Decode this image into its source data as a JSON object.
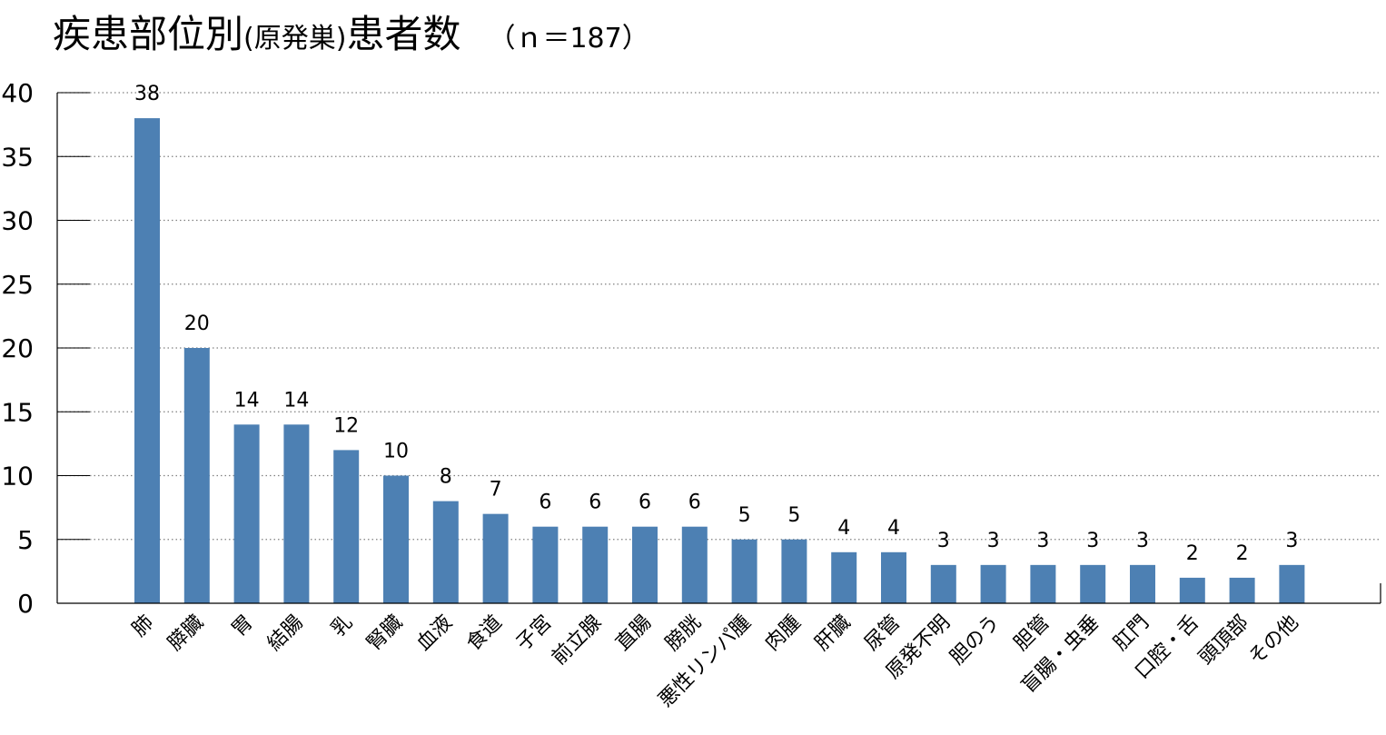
{
  "title": {
    "main": "疾患部位別",
    "paren": "(原発巣)",
    "main2": "患者数",
    "count": "（ｎ＝187）"
  },
  "colors": {
    "bar": "#4d80b3",
    "grid": "#808080",
    "axis": "#000000"
  },
  "chart_data": {
    "type": "bar",
    "title": "疾患部位別 (原発巣) 患者数 （ｎ＝187）",
    "categories": [
      "肺",
      "膵臓",
      "胃",
      "結腸",
      "乳",
      "腎臓",
      "血液",
      "食道",
      "子宮",
      "前立腺",
      "直腸",
      "膀胱",
      "悪性リンパ腫",
      "肉腫",
      "肝臓",
      "尿管",
      "原発不明",
      "胆のう",
      "胆管",
      "盲腸・虫垂",
      "肛門",
      "口腔・舌",
      "頭頂部",
      "その他"
    ],
    "values": [
      38,
      20,
      14,
      14,
      12,
      10,
      8,
      7,
      6,
      6,
      6,
      6,
      5,
      5,
      4,
      4,
      3,
      3,
      3,
      3,
      3,
      2,
      2,
      3
    ],
    "yticks": [
      0,
      5,
      10,
      15,
      20,
      25,
      30,
      35,
      40
    ],
    "ylim": [
      0,
      40
    ],
    "grid": true,
    "gridStyle": "dotted",
    "xlabel": "",
    "ylabel": ""
  }
}
